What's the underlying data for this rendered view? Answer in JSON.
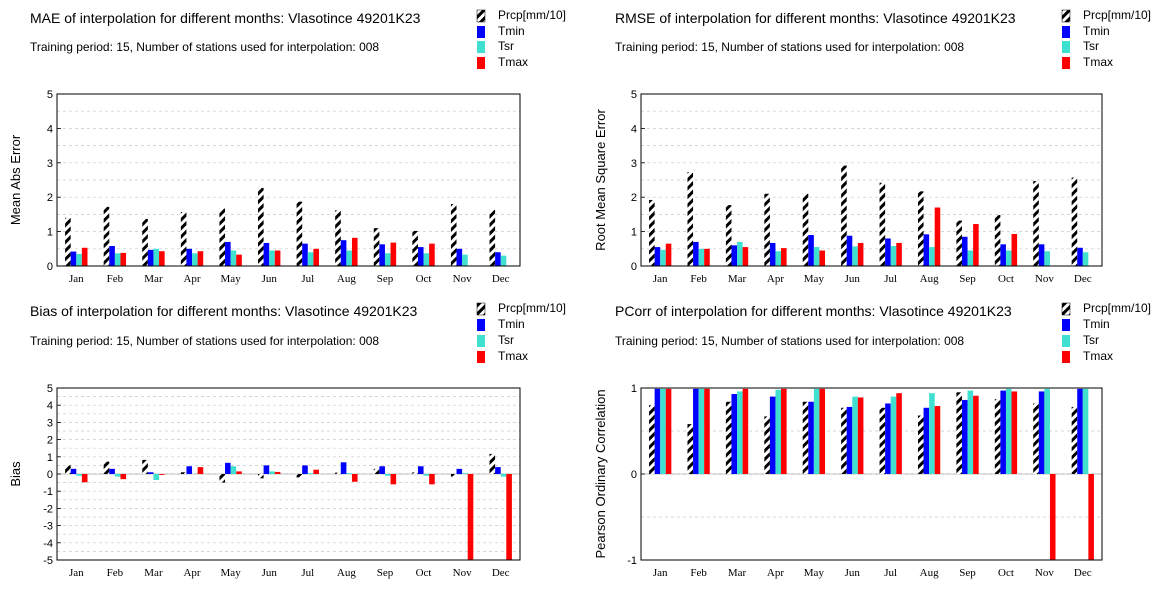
{
  "colors": {
    "Prcp": "hatch-black",
    "Tmin": "#0000ff",
    "Tsr": "#40e0d0",
    "Tmax": "#ff0000"
  },
  "chart_data": [
    {
      "type": "bar",
      "title": "MAE of interpolation for different months: Vlasotince  49201K23",
      "subtitle": "Training period: 15, Number of stations used for interpolation: 008",
      "ylabel": "Mean Abs Error",
      "xlabel": "",
      "ylim": [
        0,
        5
      ],
      "yticks": [
        0,
        1,
        2,
        3,
        4,
        5
      ],
      "grid": "dashed-horizontal",
      "legend_position": "top-right",
      "categories": [
        "Jan",
        "Feb",
        "Mar",
        "Apr",
        "May",
        "Jun",
        "Jul",
        "Aug",
        "Sep",
        "Oct",
        "Nov",
        "Dec"
      ],
      "series": [
        {
          "name": "Prcp[mm/10]",
          "values": [
            1.4,
            1.72,
            1.37,
            1.57,
            1.67,
            2.27,
            1.87,
            1.62,
            1.1,
            1.02,
            1.8,
            1.63
          ]
        },
        {
          "name": "Tmin",
          "values": [
            0.42,
            0.58,
            0.47,
            0.5,
            0.7,
            0.67,
            0.65,
            0.75,
            0.63,
            0.55,
            0.5,
            0.4
          ]
        },
        {
          "name": "Tsr",
          "values": [
            0.35,
            0.37,
            0.5,
            0.37,
            0.45,
            0.45,
            0.4,
            0.45,
            0.37,
            0.37,
            0.33,
            0.3
          ]
        },
        {
          "name": "Tmax",
          "values": [
            0.53,
            0.38,
            0.43,
            0.43,
            0.33,
            0.45,
            0.5,
            0.82,
            0.68,
            0.65,
            0,
            0
          ]
        }
      ]
    },
    {
      "type": "bar",
      "title": "RMSE of interpolation for different months: Vlasotince  49201K23",
      "subtitle": "Training period: 15, Number of stations used for interpolation: 008",
      "ylabel": "Root Mean Square Error",
      "xlabel": "",
      "ylim": [
        0,
        5
      ],
      "yticks": [
        0,
        1,
        2,
        3,
        4,
        5
      ],
      "grid": "dashed-horizontal",
      "legend_position": "top-right",
      "categories": [
        "Jan",
        "Feb",
        "Mar",
        "Apr",
        "May",
        "Jun",
        "Jul",
        "Aug",
        "Sep",
        "Oct",
        "Nov",
        "Dec"
      ],
      "series": [
        {
          "name": "Prcp[mm/10]",
          "values": [
            1.92,
            2.73,
            1.77,
            2.1,
            2.1,
            2.92,
            2.42,
            2.17,
            1.32,
            1.48,
            2.47,
            2.57
          ]
        },
        {
          "name": "Tmin",
          "values": [
            0.55,
            0.7,
            0.6,
            0.67,
            0.9,
            0.88,
            0.8,
            0.92,
            0.85,
            0.63,
            0.63,
            0.53
          ]
        },
        {
          "name": "Tsr",
          "values": [
            0.47,
            0.5,
            0.7,
            0.43,
            0.55,
            0.57,
            0.58,
            0.55,
            0.45,
            0.45,
            0.43,
            0.4
          ]
        },
        {
          "name": "Tmax",
          "values": [
            0.65,
            0.5,
            0.55,
            0.52,
            0.45,
            0.67,
            0.67,
            1.7,
            1.22,
            0.93,
            0,
            0
          ]
        }
      ]
    },
    {
      "type": "bar",
      "title": "Bias of interpolation for different months: Vlasotince  49201K23",
      "subtitle": "Training period: 15, Number of stations used for interpolation: 008",
      "ylabel": "Bias",
      "xlabel": "",
      "ylim": [
        -5,
        5
      ],
      "yticks": [
        -5,
        -4,
        -3,
        -2,
        -1,
        0,
        1,
        2,
        3,
        4,
        5
      ],
      "grid": "dashed-horizontal",
      "legend_position": "top-right",
      "categories": [
        "Jan",
        "Feb",
        "Mar",
        "Apr",
        "May",
        "Jun",
        "Jul",
        "Aug",
        "Sep",
        "Oct",
        "Nov",
        "Dec"
      ],
      "series": [
        {
          "name": "Prcp[mm/10]",
          "values": [
            0.5,
            0.72,
            0.82,
            0.1,
            -0.5,
            -0.25,
            -0.2,
            0.08,
            0.3,
            0.1,
            -0.15,
            1.17
          ]
        },
        {
          "name": "Tmin",
          "values": [
            0.3,
            0.3,
            0.1,
            0.45,
            0.65,
            0.5,
            0.5,
            0.68,
            0.45,
            0.45,
            0.3,
            0.4
          ]
        },
        {
          "name": "Tsr",
          "values": [
            -0.1,
            -0.15,
            -0.35,
            0.0,
            0.45,
            0.15,
            0.05,
            0.05,
            -0.1,
            -0.1,
            0.05,
            -0.15
          ]
        },
        {
          "name": "Tmax",
          "values": [
            -0.48,
            -0.3,
            -0.05,
            0.4,
            0.15,
            0.12,
            0.25,
            -0.45,
            -0.6,
            -0.6,
            -5,
            -5
          ]
        }
      ]
    },
    {
      "type": "bar",
      "title": "PCorr of interpolation for different months: Vlasotince  49201K23",
      "subtitle": "Training period: 15, Number of stations used for interpolation: 008",
      "ylabel": "Pearson Ordinary Correlation",
      "xlabel": "",
      "ylim": [
        -1,
        1
      ],
      "yticks": [
        -1,
        0,
        1
      ],
      "grid": "dashed-horizontal",
      "legend_position": "top-right",
      "categories": [
        "Jan",
        "Feb",
        "Mar",
        "Apr",
        "May",
        "Jun",
        "Jul",
        "Aug",
        "Sep",
        "Oct",
        "Nov",
        "Dec"
      ],
      "series": [
        {
          "name": "Prcp[mm/10]",
          "values": [
            0.8,
            0.58,
            0.84,
            0.67,
            0.84,
            0.77,
            0.77,
            0.68,
            0.95,
            0.87,
            0.82,
            0.78
          ]
        },
        {
          "name": "Tmin",
          "values": [
            0.99,
            0.99,
            0.93,
            0.9,
            0.84,
            0.78,
            0.82,
            0.77,
            0.86,
            0.97,
            0.96,
            0.99
          ]
        },
        {
          "name": "Tsr",
          "values": [
            0.99,
            0.99,
            0.96,
            0.98,
            0.99,
            0.9,
            0.9,
            0.94,
            0.97,
            0.99,
            0.99,
            0.99
          ]
        },
        {
          "name": "Tmax",
          "values": [
            0.99,
            0.99,
            0.99,
            0.99,
            0.99,
            0.89,
            0.94,
            0.79,
            0.91,
            0.96,
            -1,
            -1
          ]
        }
      ]
    }
  ]
}
